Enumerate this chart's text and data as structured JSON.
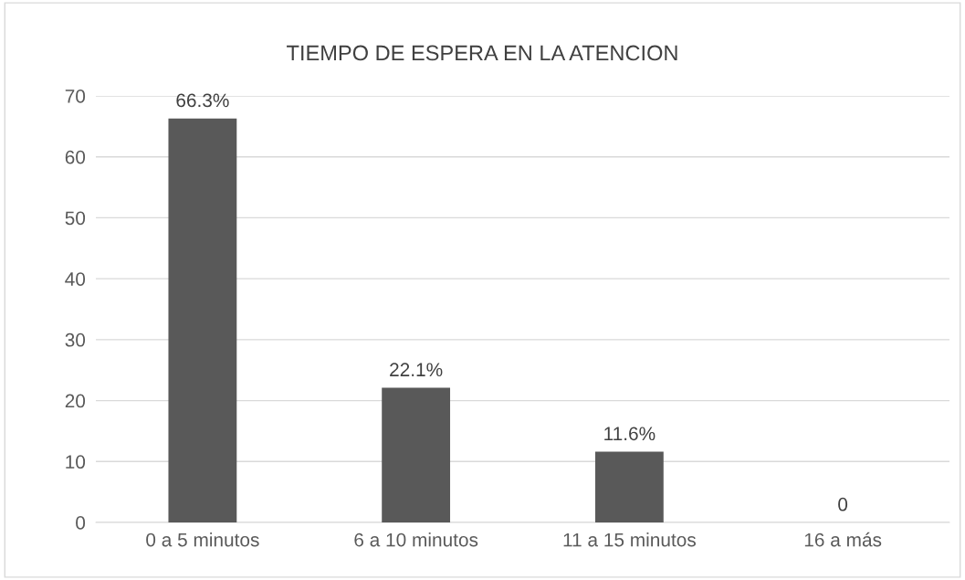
{
  "chart_data": {
    "type": "bar",
    "title": "TIEMPO DE ESPERA EN LA ATENCION",
    "categories": [
      "0 a 5 minutos",
      "6 a 10 minutos",
      "11 a 15 minutos",
      "16 a más"
    ],
    "values": [
      66.3,
      22.1,
      11.6,
      0
    ],
    "value_labels": [
      "66.3%",
      "22.1%",
      "11.6%",
      "0"
    ],
    "color": "#595959",
    "ylim": [
      0,
      70
    ],
    "yticks": [
      0,
      10,
      20,
      30,
      40,
      50,
      60,
      70
    ],
    "grid": "y",
    "legend": false
  }
}
